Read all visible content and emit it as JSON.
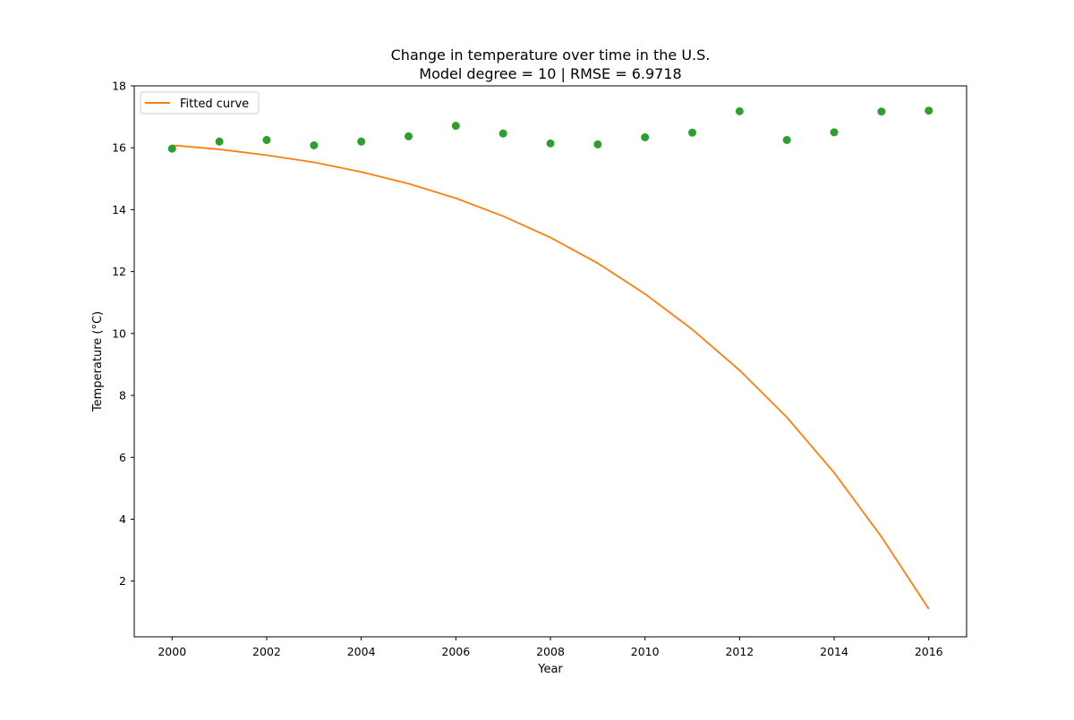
{
  "chart_data": {
    "type": "scatter",
    "title": "Change in temperature over time in the U.S.",
    "subtitle": "Model degree = 10 | RMSE = 6.9718",
    "xlabel": "Year",
    "ylabel": "Temperature (°C)",
    "xlim": [
      1999.2,
      2016.8
    ],
    "ylim": [
      0.2,
      18
    ],
    "xticks": [
      2000,
      2002,
      2004,
      2006,
      2008,
      2010,
      2012,
      2014,
      2016
    ],
    "yticks": [
      2,
      4,
      6,
      8,
      10,
      12,
      14,
      16,
      18
    ],
    "grid": false,
    "legend": {
      "position": "top-left",
      "entries": [
        "Fitted curve"
      ]
    },
    "series": [
      {
        "kind": "scatter",
        "color": "#2ca02c",
        "x": [
          2000,
          2001,
          2002,
          2003,
          2004,
          2005,
          2006,
          2007,
          2008,
          2009,
          2010,
          2011,
          2012,
          2013,
          2014,
          2015,
          2016
        ],
        "y": [
          15.97,
          16.2,
          16.25,
          16.08,
          16.2,
          16.37,
          16.71,
          16.46,
          16.14,
          16.11,
          16.34,
          16.49,
          17.18,
          16.25,
          16.5,
          17.17,
          17.2
        ]
      },
      {
        "kind": "line",
        "name": "Fitted curve",
        "color": "#ff7f0e",
        "x": [
          2000,
          2001,
          2002,
          2003,
          2004,
          2005,
          2006,
          2007,
          2008,
          2009,
          2010,
          2011,
          2012,
          2013,
          2014,
          2015,
          2016
        ],
        "y": [
          16.08,
          15.95,
          15.76,
          15.53,
          15.22,
          14.84,
          14.37,
          13.79,
          13.1,
          12.27,
          11.28,
          10.13,
          8.81,
          7.29,
          5.5,
          3.43,
          1.1
        ]
      }
    ]
  }
}
